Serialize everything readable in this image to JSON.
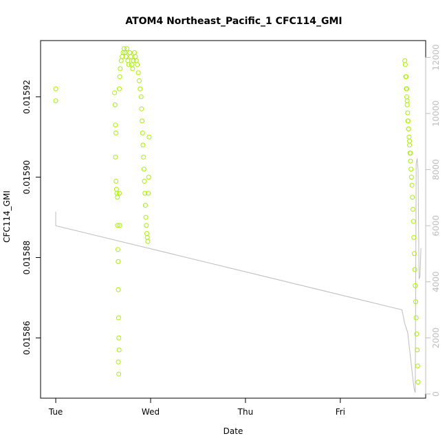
{
  "chart_data": {
    "type": "scatter",
    "title": "ATOM4 Northeast_Pacific_1 CFC114_GMI",
    "xlabel": "Date",
    "ylabel": "CFC114_GMI",
    "x_tick_labels": [
      "Tue",
      "Wed",
      "Thu",
      "Fri"
    ],
    "x_ticks_days": [
      0,
      1,
      2,
      3
    ],
    "xlim_days": [
      -0.16,
      3.9
    ],
    "ylim": [
      0.015845,
      0.015934
    ],
    "y_ticks": [
      0.01586,
      0.01588,
      0.0159,
      0.01592
    ],
    "y_tick_labels": [
      "0.01586",
      "0.01588",
      "0.01590",
      "0.01592"
    ],
    "y2lim": [
      -150,
      12600
    ],
    "y2_ticks": [
      0,
      2000,
      4000,
      6000,
      8000,
      10000,
      12000
    ],
    "y2_tick_labels": [
      "0",
      "2000",
      "4000",
      "6000",
      "8000",
      "10000",
      "12000"
    ],
    "grid": false,
    "series": [
      {
        "kind": "points",
        "color": "#a8f000",
        "points": [
          [
            0.0,
            0.015922
          ],
          [
            0.0,
            0.015919
          ],
          [
            0.62,
            0.015921
          ],
          [
            0.625,
            0.015918
          ],
          [
            0.63,
            0.015913
          ],
          [
            0.635,
            0.015911
          ],
          [
            0.63,
            0.015905
          ],
          [
            0.635,
            0.015899
          ],
          [
            0.64,
            0.015897
          ],
          [
            0.645,
            0.015896
          ],
          [
            0.65,
            0.015895
          ],
          [
            0.652,
            0.015888
          ],
          [
            0.655,
            0.015882
          ],
          [
            0.658,
            0.015879
          ],
          [
            0.66,
            0.015872
          ],
          [
            0.662,
            0.015865
          ],
          [
            0.665,
            0.01586
          ],
          [
            0.668,
            0.015857
          ],
          [
            0.66,
            0.015854
          ],
          [
            0.664,
            0.015851
          ],
          [
            0.67,
            0.015896
          ],
          [
            0.675,
            0.015888
          ],
          [
            0.67,
            0.015922
          ],
          [
            0.675,
            0.015925
          ],
          [
            0.68,
            0.015927
          ],
          [
            0.69,
            0.015929
          ],
          [
            0.7,
            0.01593
          ],
          [
            0.71,
            0.015931
          ],
          [
            0.72,
            0.015932
          ],
          [
            0.73,
            0.015931
          ],
          [
            0.74,
            0.01593
          ],
          [
            0.75,
            0.015932
          ],
          [
            0.76,
            0.015929
          ],
          [
            0.77,
            0.015928
          ],
          [
            0.78,
            0.015931
          ],
          [
            0.79,
            0.01593
          ],
          [
            0.8,
            0.015928
          ],
          [
            0.81,
            0.015927
          ],
          [
            0.82,
            0.015929
          ],
          [
            0.83,
            0.015931
          ],
          [
            0.84,
            0.01593
          ],
          [
            0.85,
            0.015929
          ],
          [
            0.86,
            0.015928
          ],
          [
            0.87,
            0.015926
          ],
          [
            0.88,
            0.015924
          ],
          [
            0.89,
            0.015922
          ],
          [
            0.9,
            0.01592
          ],
          [
            0.905,
            0.015917
          ],
          [
            0.91,
            0.015914
          ],
          [
            0.915,
            0.015911
          ],
          [
            0.92,
            0.015908
          ],
          [
            0.925,
            0.015905
          ],
          [
            0.93,
            0.015902
          ],
          [
            0.935,
            0.015899
          ],
          [
            0.94,
            0.015896
          ],
          [
            0.945,
            0.015893
          ],
          [
            0.95,
            0.01589
          ],
          [
            0.955,
            0.015888
          ],
          [
            0.96,
            0.015886
          ],
          [
            0.965,
            0.015885
          ],
          [
            0.97,
            0.015884
          ],
          [
            0.975,
            0.015896
          ],
          [
            0.98,
            0.0159
          ],
          [
            0.985,
            0.01591
          ],
          [
            3.68,
            0.015929
          ],
          [
            3.685,
            0.015928
          ],
          [
            3.69,
            0.015925
          ],
          [
            3.695,
            0.015922
          ],
          [
            3.7,
            0.01592
          ],
          [
            3.705,
            0.015918
          ],
          [
            3.71,
            0.015916
          ],
          [
            3.715,
            0.015914
          ],
          [
            3.72,
            0.015912
          ],
          [
            3.725,
            0.01591
          ],
          [
            3.73,
            0.015908
          ],
          [
            3.735,
            0.015906
          ],
          [
            3.74,
            0.015904
          ],
          [
            3.745,
            0.015902
          ],
          [
            3.75,
            0.0159
          ],
          [
            3.755,
            0.015898
          ],
          [
            3.76,
            0.015895
          ],
          [
            3.765,
            0.015892
          ],
          [
            3.77,
            0.015889
          ],
          [
            3.775,
            0.015885
          ],
          [
            3.78,
            0.015881
          ],
          [
            3.785,
            0.015877
          ],
          [
            3.79,
            0.015873
          ],
          [
            3.795,
            0.015869
          ],
          [
            3.8,
            0.015865
          ],
          [
            3.805,
            0.015861
          ],
          [
            3.81,
            0.015857
          ],
          [
            3.815,
            0.015853
          ],
          [
            3.82,
            0.015849
          ],
          [
            3.695,
            0.015925
          ],
          [
            3.7,
            0.015922
          ],
          [
            3.705,
            0.015919
          ],
          [
            3.712,
            0.015914
          ],
          [
            3.72,
            0.015912
          ],
          [
            3.73,
            0.015909
          ],
          [
            3.74,
            0.015906
          ]
        ]
      },
      {
        "kind": "line",
        "axis": "right",
        "color": "#bdbdbd",
        "points": [
          [
            0.0,
            6500
          ],
          [
            0.0,
            6000
          ],
          [
            3.65,
            3000
          ],
          [
            3.68,
            2500
          ],
          [
            3.71,
            2200
          ],
          [
            3.72,
            1900
          ],
          [
            3.73,
            1600
          ],
          [
            3.74,
            1300
          ],
          [
            3.75,
            1000
          ],
          [
            3.76,
            700
          ],
          [
            3.77,
            400
          ],
          [
            3.78,
            150
          ],
          [
            3.79,
            50
          ],
          [
            3.8,
            8200
          ],
          [
            3.81,
            8400
          ],
          [
            3.82,
            8000
          ],
          [
            3.83,
            4100
          ],
          [
            3.84,
            4200
          ],
          [
            3.85,
            5200
          ]
        ]
      }
    ]
  }
}
